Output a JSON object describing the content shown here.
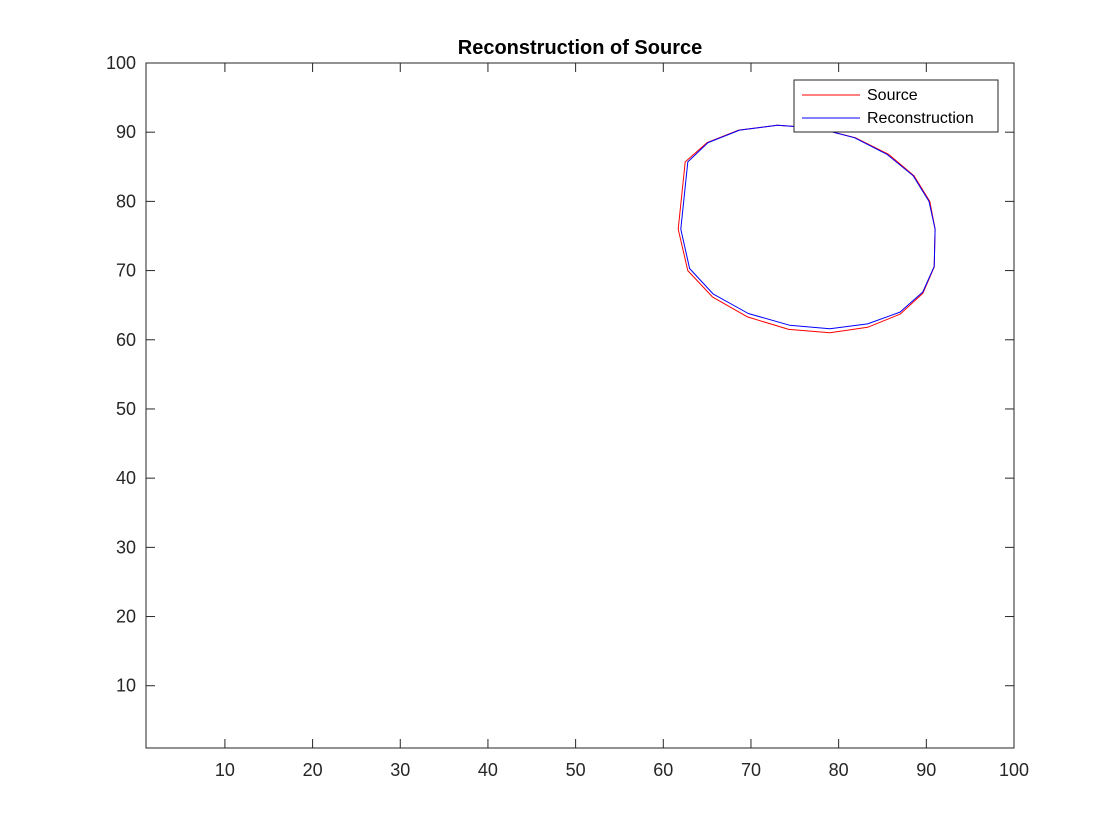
{
  "chart_data": {
    "type": "line",
    "title": "Reconstruction of Source",
    "xlabel": "",
    "ylabel": "",
    "xlim": [
      1,
      100
    ],
    "ylim": [
      1,
      100
    ],
    "xticks": [
      10,
      20,
      30,
      40,
      50,
      60,
      70,
      80,
      90,
      100
    ],
    "yticks": [
      10,
      20,
      30,
      40,
      50,
      60,
      70,
      80,
      90,
      100
    ],
    "grid": false,
    "legend_position": "top-right",
    "series": [
      {
        "name": "Source",
        "color": "#ff0000",
        "shape": "closed-curve",
        "x": [
          91.0,
          90.4,
          88.6,
          85.7,
          81.9,
          77.5,
          73.0,
          68.6,
          65.0,
          62.5,
          61.7,
          62.8,
          65.6,
          69.6,
          74.3,
          79.0,
          83.3,
          87.0,
          89.6,
          90.9,
          91.0
        ],
        "y": [
          76.0,
          80.0,
          83.7,
          86.8,
          89.2,
          90.6,
          91.0,
          90.3,
          88.5,
          85.7,
          76.0,
          70.0,
          66.2,
          63.3,
          61.5,
          61.0,
          61.8,
          63.7,
          66.7,
          70.5,
          76.0
        ]
      },
      {
        "name": "Reconstruction",
        "color": "#0000ff",
        "shape": "closed-curve",
        "x": [
          91.0,
          90.3,
          88.5,
          85.5,
          81.8,
          77.5,
          73.0,
          68.7,
          65.1,
          62.8,
          62.0,
          63.0,
          65.7,
          69.7,
          74.4,
          79.0,
          83.3,
          87.0,
          89.6,
          90.9,
          91.0
        ],
        "y": [
          76.0,
          80.0,
          83.7,
          86.8,
          89.2,
          90.6,
          91.0,
          90.3,
          88.5,
          85.7,
          76.0,
          70.3,
          66.6,
          63.8,
          62.1,
          61.6,
          62.3,
          64.0,
          66.9,
          70.6,
          76.0
        ]
      }
    ]
  }
}
